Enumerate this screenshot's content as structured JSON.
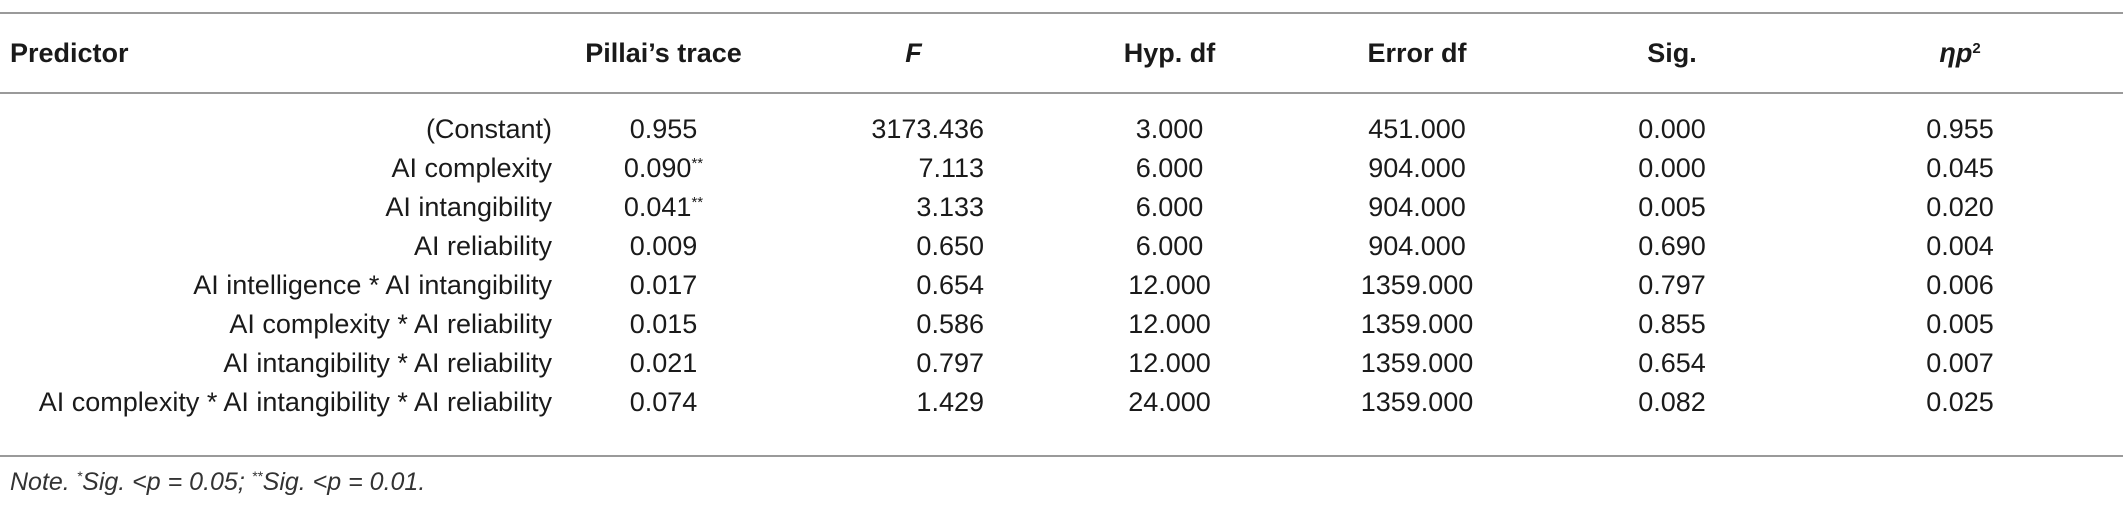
{
  "table": {
    "headers": {
      "predictor": "Predictor",
      "pillai": "Pillai’s trace",
      "f": "F",
      "hyp_df": "Hyp. df",
      "error_df": "Error df",
      "sig": "Sig.",
      "eta": "ηp",
      "eta_sup": "2"
    },
    "rows": [
      {
        "predictor": "(Constant)",
        "pillai": "0.955",
        "pillai_sup": "",
        "f": "3173.436",
        "hyp_df": "3.000",
        "error_df": "451.000",
        "sig": "0.000",
        "eta": "0.955"
      },
      {
        "predictor": "AI complexity",
        "pillai": "0.090",
        "pillai_sup": "**",
        "f": "7.113",
        "hyp_df": "6.000",
        "error_df": "904.000",
        "sig": "0.000",
        "eta": "0.045"
      },
      {
        "predictor": "AI intangibility",
        "pillai": "0.041",
        "pillai_sup": "**",
        "f": "3.133",
        "hyp_df": "6.000",
        "error_df": "904.000",
        "sig": "0.005",
        "eta": "0.020"
      },
      {
        "predictor": "AI reliability",
        "pillai": "0.009",
        "pillai_sup": "",
        "f": "0.650",
        "hyp_df": "6.000",
        "error_df": "904.000",
        "sig": "0.690",
        "eta": "0.004"
      },
      {
        "predictor": "AI intelligence * AI intangibility",
        "pillai": "0.017",
        "pillai_sup": "",
        "f": "0.654",
        "hyp_df": "12.000",
        "error_df": "1359.000",
        "sig": "0.797",
        "eta": "0.006"
      },
      {
        "predictor": "AI complexity * AI reliability",
        "pillai": "0.015",
        "pillai_sup": "",
        "f": "0.586",
        "hyp_df": "12.000",
        "error_df": "1359.000",
        "sig": "0.855",
        "eta": "0.005"
      },
      {
        "predictor": "AI intangibility * AI reliability",
        "pillai": "0.021",
        "pillai_sup": "",
        "f": "0.797",
        "hyp_df": "12.000",
        "error_df": "1359.000",
        "sig": "0.654",
        "eta": "0.007"
      },
      {
        "predictor": "AI complexity * AI intangibility * AI reliability",
        "pillai": "0.074",
        "pillai_sup": "",
        "f": "1.429",
        "hyp_df": "24.000",
        "error_df": "1359.000",
        "sig": "0.082",
        "eta": "0.025"
      }
    ]
  },
  "note": {
    "prefix": "Note. ",
    "sup1": "*",
    "text1": "Sig. <p = 0.05; ",
    "sup2": "**",
    "text2": "Sig. <p = 0.01."
  },
  "colors": {
    "rule": "#9a9a9a",
    "text": "#1a1a1a"
  }
}
